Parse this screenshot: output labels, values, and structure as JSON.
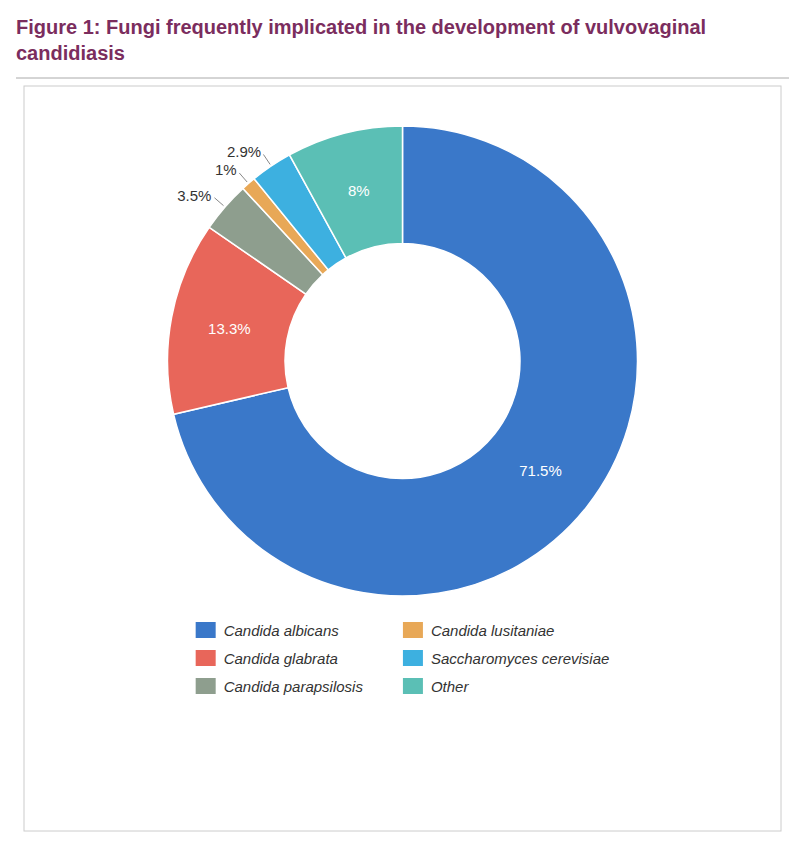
{
  "chart_data": {
    "type": "donut",
    "title": "Figure 1: Fungi frequently implicated in the development of vulvovaginal candidiasis",
    "categories": [
      "Candida albicans",
      "Candida glabrata",
      "Candida parapsilosis",
      "Candida lusitaniae",
      "Saccharomyces cerevisiae",
      "Other"
    ],
    "values": [
      71.5,
      13.3,
      3.5,
      1.0,
      2.9,
      8.0
    ],
    "value_labels": [
      "71.5%",
      "13.3%",
      "3.5%",
      "1%",
      "2.9%",
      "8%"
    ],
    "colors": [
      "#3a78c9",
      "#e8665a",
      "#8e9e8e",
      "#e8a857",
      "#3db0e0",
      "#5bbfb5"
    ],
    "data_labels": true,
    "legend": "bottom"
  }
}
